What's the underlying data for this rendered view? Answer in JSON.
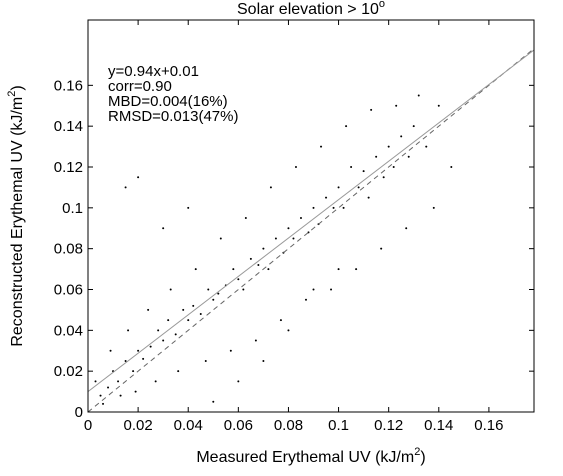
{
  "chart_data": {
    "type": "scatter",
    "title": "Solar elevation > 10",
    "title_sup": "o",
    "xlabel": "Measured Erythemal UV (kJ/m",
    "xlabel_sup": "2",
    "xlabel_end": ")",
    "ylabel": "Reconstructed Erythemal UV (kJ/m",
    "ylabel_sup": "2",
    "ylabel_end": ")",
    "annotations": [
      "y=0.94x+0.01",
      "corr=0.90",
      "MBD=0.004(16%)",
      "RMSD=0.013(47%)"
    ],
    "color": "#000000",
    "x": [
      0.005,
      0.008,
      0.01,
      0.012,
      0.015,
      0.018,
      0.02,
      0.022,
      0.025,
      0.028,
      0.03,
      0.032,
      0.035,
      0.038,
      0.04,
      0.042,
      0.045,
      0.048,
      0.05,
      0.052,
      0.055,
      0.058,
      0.06,
      0.062,
      0.065,
      0.068,
      0.07,
      0.072,
      0.075,
      0.078,
      0.08,
      0.082,
      0.085,
      0.088,
      0.09,
      0.092,
      0.095,
      0.098,
      0.1,
      0.102,
      0.105,
      0.108,
      0.11,
      0.112,
      0.115,
      0.118,
      0.12,
      0.122,
      0.125,
      0.128,
      0.13,
      0.135,
      0.14,
      0.145,
      0.003,
      0.006,
      0.009,
      0.013,
      0.016,
      0.019,
      0.024,
      0.027,
      0.033,
      0.036,
      0.043,
      0.047,
      0.053,
      0.057,
      0.063,
      0.067,
      0.073,
      0.077,
      0.083,
      0.087,
      0.093,
      0.097,
      0.103,
      0.107,
      0.113,
      0.117,
      0.123,
      0.127,
      0.132,
      0.138,
      0.015,
      0.02,
      0.03,
      0.04,
      0.05,
      0.06,
      0.07,
      0.08,
      0.09,
      0.1
    ],
    "y": [
      0.008,
      0.012,
      0.02,
      0.015,
      0.025,
      0.02,
      0.03,
      0.026,
      0.032,
      0.04,
      0.035,
      0.045,
      0.038,
      0.05,
      0.045,
      0.052,
      0.048,
      0.06,
      0.055,
      0.058,
      0.062,
      0.07,
      0.065,
      0.06,
      0.075,
      0.072,
      0.08,
      0.07,
      0.085,
      0.078,
      0.09,
      0.085,
      0.095,
      0.088,
      0.1,
      0.092,
      0.105,
      0.1,
      0.11,
      0.1,
      0.12,
      0.11,
      0.118,
      0.105,
      0.125,
      0.115,
      0.13,
      0.12,
      0.135,
      0.125,
      0.14,
      0.13,
      0.15,
      0.12,
      0.015,
      0.004,
      0.03,
      0.008,
      0.04,
      0.01,
      0.05,
      0.015,
      0.06,
      0.02,
      0.07,
      0.025,
      0.085,
      0.03,
      0.095,
      0.035,
      0.11,
      0.045,
      0.12,
      0.055,
      0.13,
      0.06,
      0.14,
      0.07,
      0.148,
      0.08,
      0.15,
      0.09,
      0.155,
      0.1,
      0.11,
      0.115,
      0.09,
      0.1,
      0.005,
      0.015,
      0.025,
      0.04,
      0.06,
      0.07
    ],
    "lines": [
      {
        "slope": 1,
        "intercept": 0,
        "style": "dashed",
        "color": "#666666"
      },
      {
        "slope": 0.94,
        "intercept": 0.01,
        "style": "solid",
        "color": "#999999"
      }
    ],
    "xlim": [
      0,
      0.178
    ],
    "ylim": [
      0,
      0.192
    ],
    "xticks": [
      0,
      0.02,
      0.04,
      0.06,
      0.08,
      0.1,
      0.12,
      0.14,
      0.16
    ],
    "yticks": [
      0,
      0.02,
      0.04,
      0.06,
      0.08,
      0.1,
      0.12,
      0.14,
      0.16
    ]
  }
}
